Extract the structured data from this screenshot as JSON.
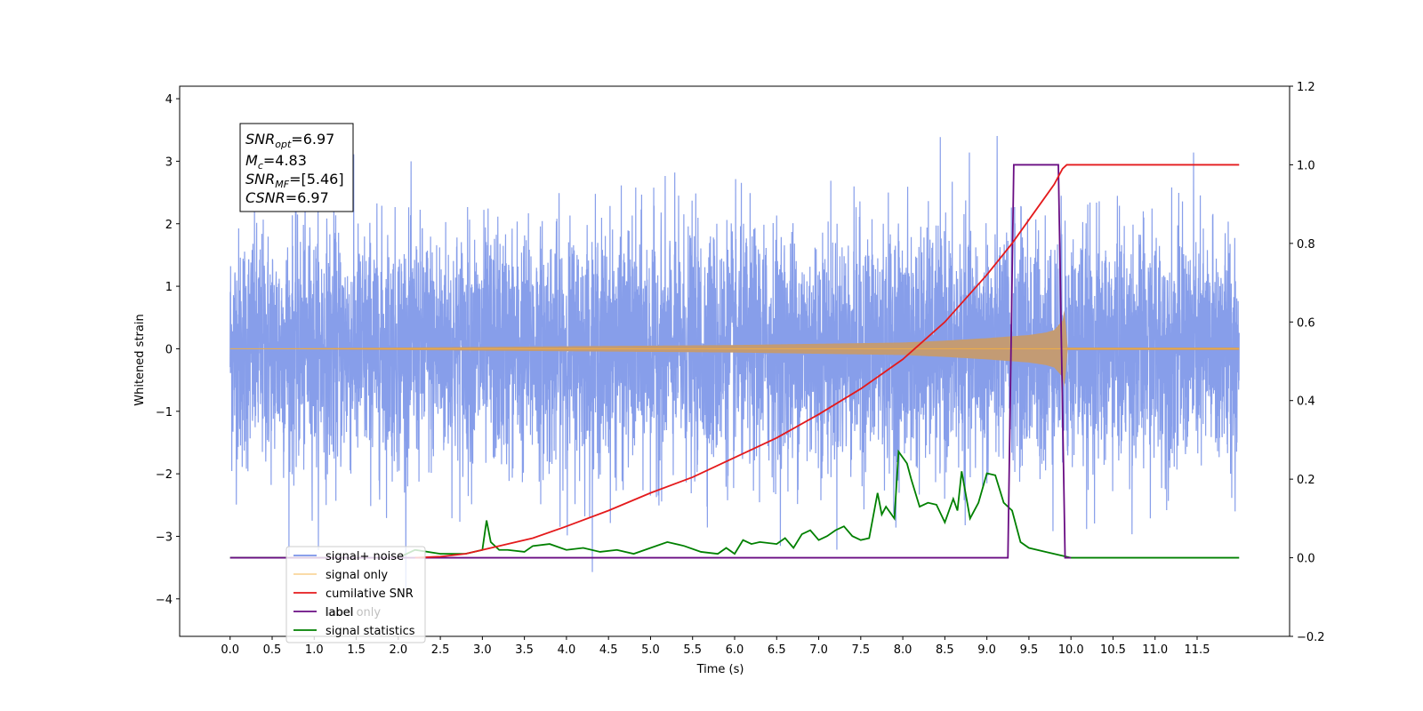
{
  "chart_data": {
    "type": "line",
    "xlabel": "Time (s)",
    "ylabel": "Whitened strain",
    "xlim": [
      -0.6,
      12.6
    ],
    "ylim": [
      -4.6,
      4.2
    ],
    "y2lim": [
      -0.2,
      1.2
    ],
    "x_ticks": [
      "0.0",
      "0.5",
      "1.0",
      "1.5",
      "2.0",
      "2.5",
      "3.0",
      "3.5",
      "4.0",
      "4.5",
      "5.0",
      "5.5",
      "6.0",
      "6.5",
      "7.0",
      "7.5",
      "8.0",
      "8.5",
      "9.0",
      "9.5",
      "10.0",
      "10.5",
      "11.0",
      "11.5"
    ],
    "y_ticks": [
      "4",
      "3",
      "2",
      "1",
      "0",
      "−1",
      "−2",
      "−3",
      "−4"
    ],
    "y2_ticks": [
      "1.2",
      "1.0",
      "0.8",
      "0.6",
      "0.4",
      "0.2",
      "0.0",
      "−0.2"
    ],
    "stats_box": {
      "snr_opt": {
        "main": "SNR",
        "sub": "opt",
        "value": "=6.97"
      },
      "mc": {
        "main": "M",
        "sub": "c",
        "value": "=4.83"
      },
      "snr_mf": {
        "main": "SNR",
        "sub": "MF",
        "value": "=[5.46]"
      },
      "csnr": {
        "main": "CSNR",
        "sub": "",
        "value": "=6.97"
      }
    },
    "legend": {
      "placement": "lower-left",
      "items": [
        "signal+ noise",
        "signal only",
        "cumilative SNR",
        "label",
        "signal statistics"
      ],
      "occluded_text": "label only"
    },
    "colors": {
      "signal_noise": "#7a93e8",
      "signal_only": "#f5b041",
      "signal_envelope": "#c39b74",
      "cumulative_snr": "#e41a1c",
      "label": "#6a0d83",
      "signal_statistics": "#008000"
    },
    "series": [
      {
        "name": "signal+ noise",
        "axis": "left",
        "description": "whitened strain noise, approx. +/-2 typical, peaks near +/-3.8",
        "x_range": [
          0.0,
          12.0
        ],
        "approx_std": 0.95
      },
      {
        "name": "signal only",
        "axis": "left",
        "envelope_x": [
          0.0,
          2.0,
          4.0,
          6.0,
          7.0,
          8.0,
          8.5,
          9.0,
          9.3,
          9.5,
          9.7,
          9.8,
          9.9,
          9.93,
          9.95,
          12.0
        ],
        "envelope_amp": [
          0.0,
          0.02,
          0.04,
          0.06,
          0.08,
          0.1,
          0.13,
          0.17,
          0.2,
          0.22,
          0.26,
          0.3,
          0.45,
          0.7,
          0.02,
          0.02
        ]
      },
      {
        "name": "cumilative SNR",
        "axis": "right",
        "x": [
          2.2,
          2.5,
          2.8,
          3.0,
          3.3,
          3.6,
          4.0,
          4.5,
          5.0,
          5.5,
          6.0,
          6.5,
          7.0,
          7.5,
          8.0,
          8.5,
          9.0,
          9.3,
          9.5,
          9.7,
          9.8,
          9.9,
          9.95,
          12.0
        ],
        "values": [
          0.0,
          0.003,
          0.01,
          0.02,
          0.035,
          0.05,
          0.08,
          0.12,
          0.165,
          0.205,
          0.255,
          0.305,
          0.365,
          0.43,
          0.505,
          0.6,
          0.72,
          0.8,
          0.86,
          0.92,
          0.95,
          0.99,
          1.0,
          1.0
        ]
      },
      {
        "name": "label",
        "axis": "right",
        "x": [
          0.0,
          9.25,
          9.32,
          9.85,
          9.93,
          10.0
        ],
        "values": [
          0.0,
          0.0,
          1.0,
          1.0,
          0.0,
          0.0
        ]
      },
      {
        "name": "signal statistics",
        "axis": "right",
        "x": [
          0.0,
          0.5,
          1.0,
          1.5,
          2.0,
          2.2,
          2.5,
          2.8,
          3.0,
          3.05,
          3.1,
          3.2,
          3.3,
          3.5,
          3.6,
          3.8,
          4.0,
          4.2,
          4.4,
          4.6,
          4.8,
          5.0,
          5.2,
          5.4,
          5.6,
          5.8,
          5.9,
          6.0,
          6.1,
          6.2,
          6.3,
          6.5,
          6.6,
          6.7,
          6.8,
          6.9,
          7.0,
          7.1,
          7.2,
          7.3,
          7.4,
          7.5,
          7.6,
          7.7,
          7.75,
          7.8,
          7.9,
          7.95,
          8.05,
          8.1,
          8.2,
          8.3,
          8.4,
          8.5,
          8.6,
          8.65,
          8.7,
          8.8,
          8.9,
          9.0,
          9.1,
          9.2,
          9.3,
          9.4,
          9.5,
          9.7,
          9.9,
          10.0,
          12.0
        ],
        "values": [
          0.0,
          0.0,
          0.0,
          0.0,
          0.0,
          0.02,
          0.01,
          0.01,
          0.02,
          0.095,
          0.04,
          0.02,
          0.02,
          0.015,
          0.03,
          0.035,
          0.02,
          0.025,
          0.015,
          0.02,
          0.01,
          0.025,
          0.04,
          0.03,
          0.015,
          0.01,
          0.025,
          0.01,
          0.045,
          0.035,
          0.04,
          0.035,
          0.05,
          0.025,
          0.06,
          0.07,
          0.045,
          0.055,
          0.07,
          0.08,
          0.055,
          0.045,
          0.05,
          0.165,
          0.11,
          0.13,
          0.1,
          0.27,
          0.24,
          0.2,
          0.13,
          0.14,
          0.135,
          0.09,
          0.15,
          0.12,
          0.22,
          0.1,
          0.14,
          0.215,
          0.21,
          0.14,
          0.12,
          0.04,
          0.025,
          0.015,
          0.005,
          0.0,
          0.0
        ]
      }
    ]
  }
}
